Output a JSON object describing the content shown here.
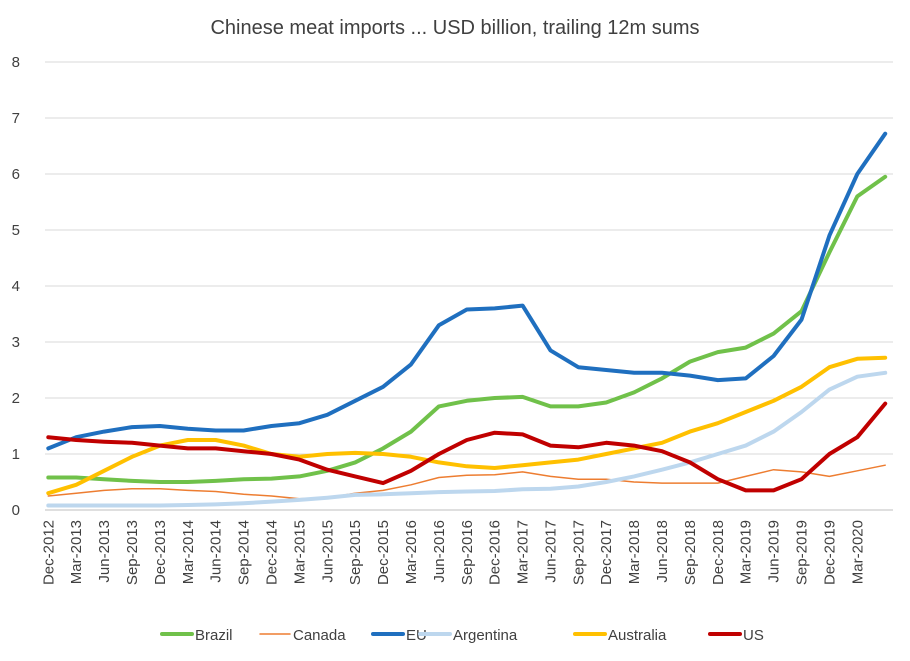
{
  "chart_data": {
    "type": "line",
    "title": "Chinese meat imports ... USD billion, trailing 12m sums",
    "xlabel": "",
    "ylabel": "",
    "ylim": [
      0,
      8
    ],
    "yticks": [
      0,
      1,
      2,
      3,
      4,
      5,
      6,
      7,
      8
    ],
    "grid": true,
    "legend": "bottom",
    "x_tick_labels": [
      "Dec-2012",
      "Mar-2013",
      "Jun-2013",
      "Sep-2013",
      "Dec-2013",
      "Mar-2014",
      "Jun-2014",
      "Sep-2014",
      "Dec-2014",
      "Mar-2015",
      "Jun-2015",
      "Sep-2015",
      "Dec-2015",
      "Mar-2016",
      "Jun-2016",
      "Sep-2016",
      "Dec-2016",
      "Mar-2017",
      "Jun-2017",
      "Sep-2017",
      "Dec-2017",
      "Mar-2018",
      "Jun-2018",
      "Sep-2018",
      "Dec-2018",
      "Mar-2019",
      "Jun-2019",
      "Sep-2019",
      "Dec-2019",
      "Mar-2020"
    ],
    "x": [
      "Dec-2012",
      "Mar-2013",
      "Jun-2013",
      "Sep-2013",
      "Dec-2013",
      "Mar-2014",
      "Jun-2014",
      "Sep-2014",
      "Dec-2014",
      "Mar-2015",
      "Jun-2015",
      "Sep-2015",
      "Dec-2015",
      "Mar-2016",
      "Jun-2016",
      "Sep-2016",
      "Dec-2016",
      "Mar-2017",
      "Jun-2017",
      "Sep-2017",
      "Dec-2017",
      "Mar-2018",
      "Jun-2018",
      "Sep-2018",
      "Dec-2018",
      "Mar-2019",
      "Jun-2019",
      "Sep-2019",
      "Dec-2019",
      "Mar-2020",
      "Jun-2020"
    ],
    "series": [
      {
        "name": "Brazil",
        "color": "#70c14a",
        "width": 4,
        "values": [
          0.58,
          0.58,
          0.55,
          0.52,
          0.5,
          0.5,
          0.52,
          0.55,
          0.56,
          0.6,
          0.7,
          0.85,
          1.1,
          1.4,
          1.85,
          1.95,
          2.0,
          2.02,
          1.85,
          1.85,
          1.92,
          2.1,
          2.35,
          2.65,
          2.82,
          2.9,
          3.15,
          3.55,
          4.6,
          5.6,
          5.95
        ]
      },
      {
        "name": "Canada",
        "color": "#ed7d31",
        "width": 1.5,
        "values": [
          0.25,
          0.3,
          0.35,
          0.38,
          0.38,
          0.35,
          0.33,
          0.28,
          0.25,
          0.2,
          0.22,
          0.3,
          0.35,
          0.45,
          0.58,
          0.62,
          0.63,
          0.68,
          0.6,
          0.55,
          0.55,
          0.5,
          0.48,
          0.48,
          0.48,
          0.6,
          0.72,
          0.68,
          0.6,
          0.7,
          0.8
        ]
      },
      {
        "name": "EU",
        "color": "#1f6fbf",
        "width": 4,
        "values": [
          1.1,
          1.3,
          1.4,
          1.48,
          1.5,
          1.45,
          1.42,
          1.42,
          1.5,
          1.55,
          1.7,
          1.95,
          2.2,
          2.6,
          3.3,
          3.58,
          3.6,
          3.65,
          2.85,
          2.55,
          2.5,
          2.45,
          2.45,
          2.4,
          2.32,
          2.35,
          2.75,
          3.4,
          4.9,
          6.0,
          6.72
        ]
      },
      {
        "name": "Argentina",
        "color": "#bdd7ee",
        "width": 4,
        "values": [
          0.08,
          0.08,
          0.08,
          0.08,
          0.08,
          0.09,
          0.1,
          0.12,
          0.15,
          0.18,
          0.22,
          0.27,
          0.28,
          0.3,
          0.32,
          0.33,
          0.34,
          0.37,
          0.38,
          0.42,
          0.5,
          0.6,
          0.72,
          0.85,
          1.0,
          1.15,
          1.4,
          1.75,
          2.15,
          2.38,
          2.45
        ]
      },
      {
        "name": "Australia",
        "color": "#ffc000",
        "width": 4,
        "values": [
          0.3,
          0.45,
          0.7,
          0.95,
          1.15,
          1.25,
          1.25,
          1.15,
          1.0,
          0.95,
          1.0,
          1.02,
          1.0,
          0.95,
          0.85,
          0.78,
          0.75,
          0.8,
          0.85,
          0.9,
          1.0,
          1.1,
          1.2,
          1.4,
          1.55,
          1.75,
          1.95,
          2.2,
          2.55,
          2.7,
          2.72
        ]
      },
      {
        "name": "US",
        "color": "#c00000",
        "width": 4,
        "values": [
          1.3,
          1.25,
          1.22,
          1.2,
          1.15,
          1.1,
          1.1,
          1.05,
          1.0,
          0.9,
          0.72,
          0.6,
          0.48,
          0.7,
          1.0,
          1.25,
          1.38,
          1.35,
          1.15,
          1.12,
          1.2,
          1.15,
          1.05,
          0.85,
          0.55,
          0.35,
          0.35,
          0.55,
          1.0,
          1.3,
          1.9
        ]
      }
    ]
  }
}
